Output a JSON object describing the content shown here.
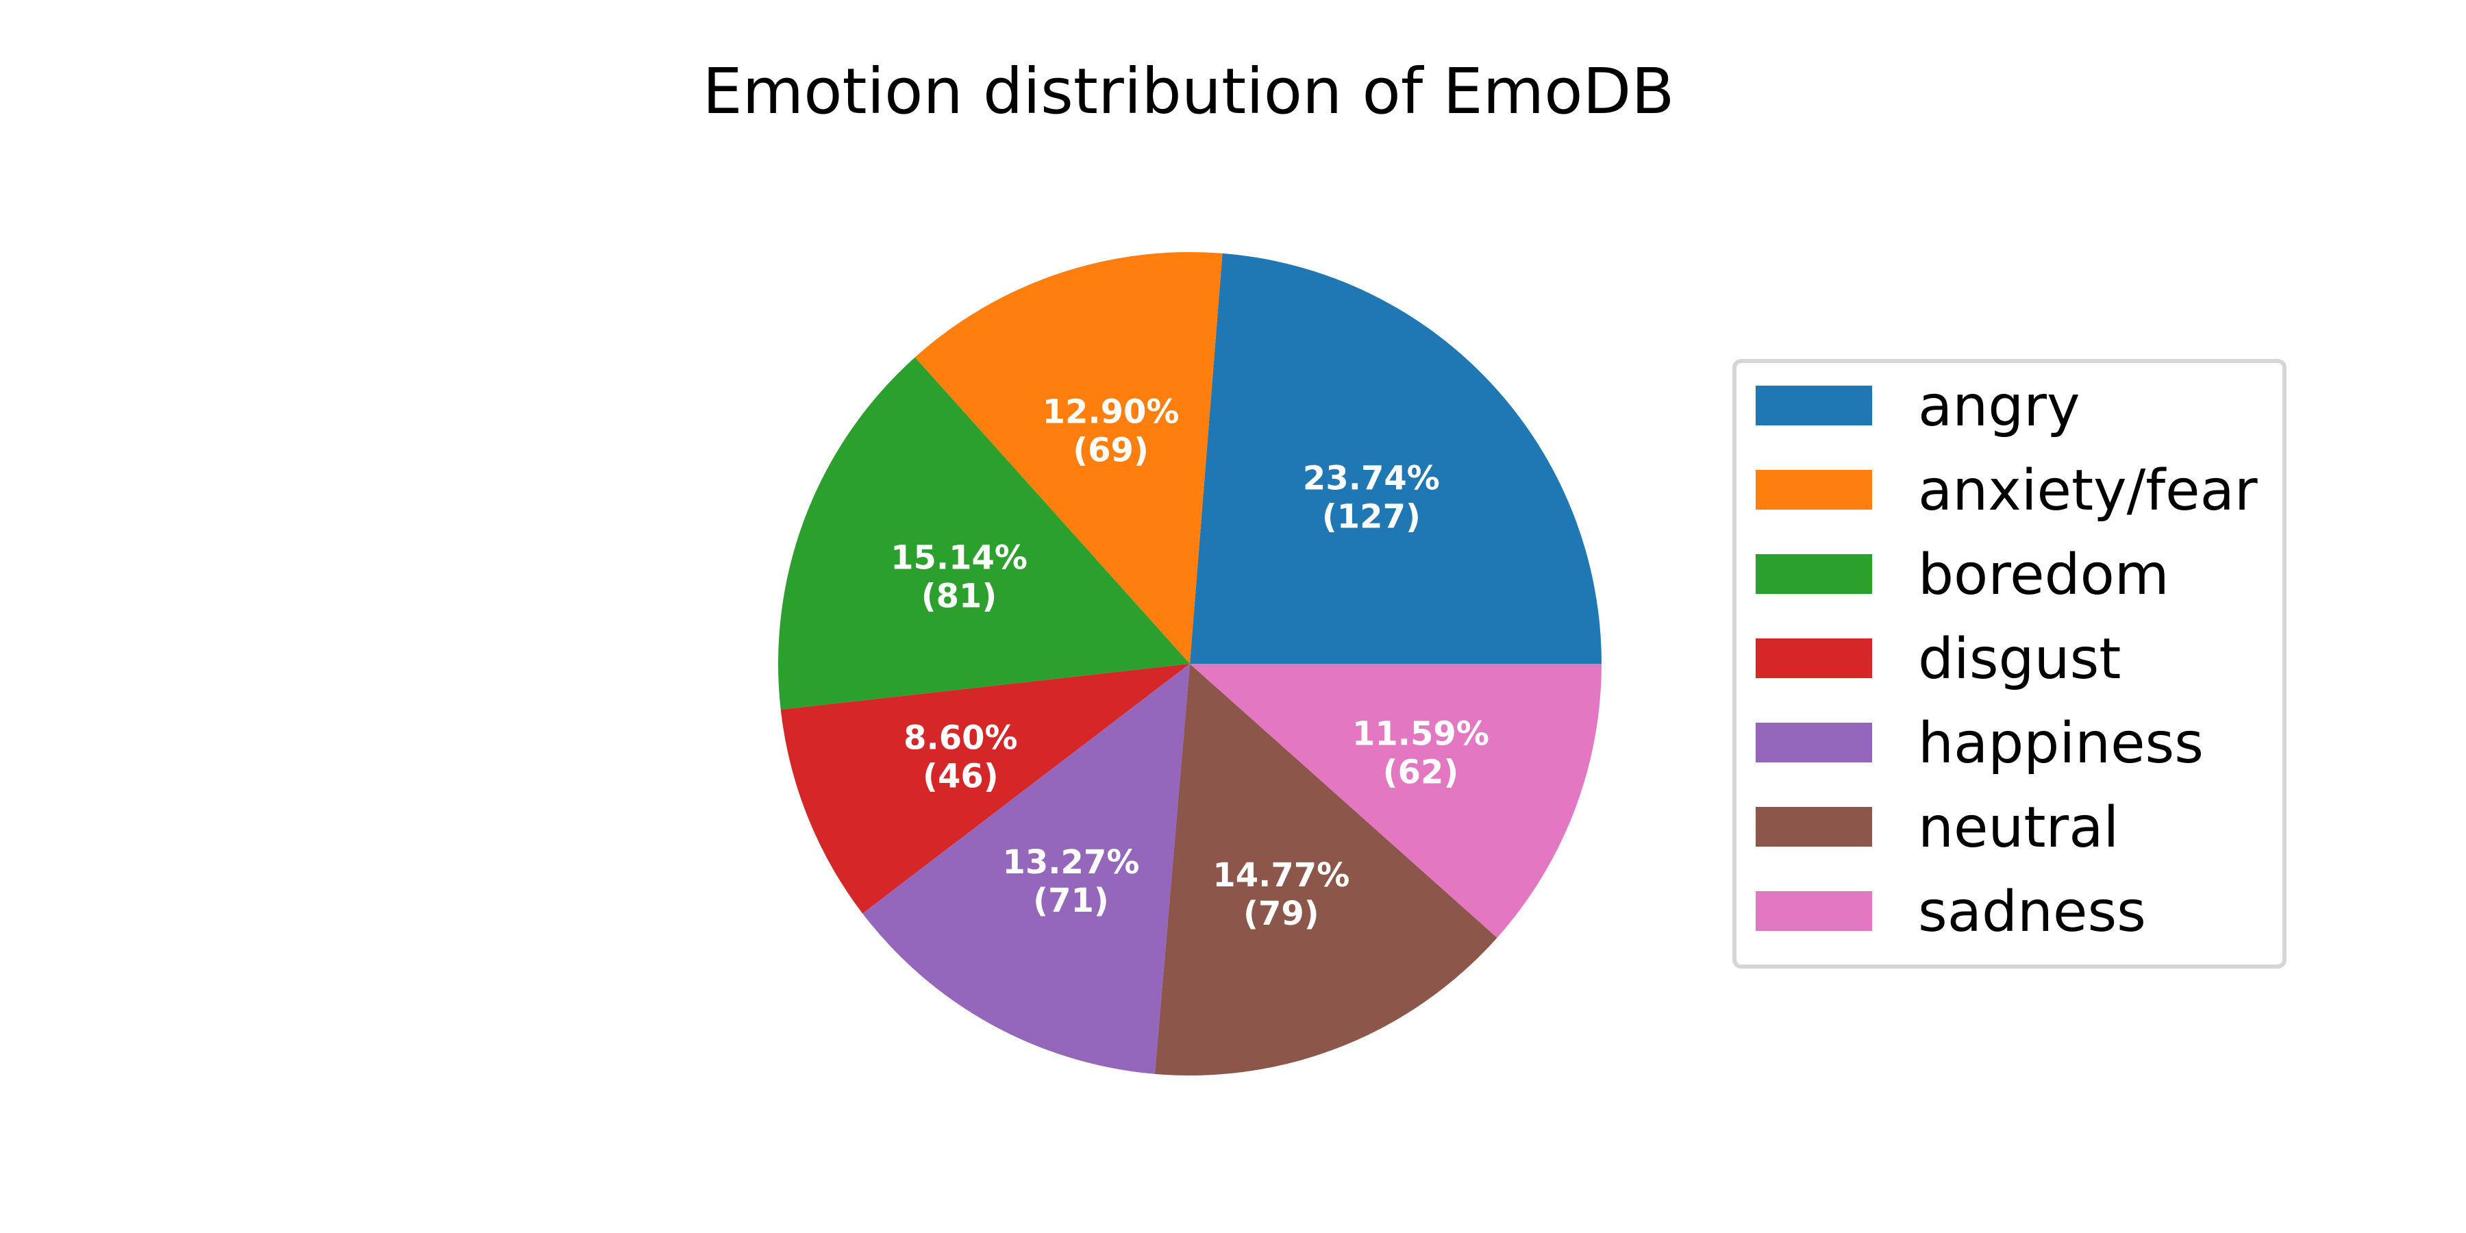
{
  "chart_data": {
    "type": "pie",
    "title": "Emotion distribution of EmoDB",
    "legend_position": "right",
    "start_angle_degrees": 0,
    "direction": "counterclockwise",
    "slices": [
      {
        "label": "angry",
        "value": 127,
        "percent_label": "23.74%",
        "count_label": "(127)",
        "color": "#1f77b4"
      },
      {
        "label": "anxiety/fear",
        "value": 69,
        "percent_label": "12.90%",
        "count_label": "(69)",
        "color": "#ff7f0e"
      },
      {
        "label": "boredom",
        "value": 81,
        "percent_label": "15.14%",
        "count_label": "(81)",
        "color": "#2ca02c"
      },
      {
        "label": "disgust",
        "value": 46,
        "percent_label": "8.60%",
        "count_label": "(46)",
        "color": "#d62728"
      },
      {
        "label": "happiness",
        "value": 71,
        "percent_label": "13.27%",
        "count_label": "(71)",
        "color": "#9467bd"
      },
      {
        "label": "neutral",
        "value": 79,
        "percent_label": "14.77%",
        "count_label": "(79)",
        "color": "#8c564b"
      },
      {
        "label": "sadness",
        "value": 62,
        "percent_label": "11.59%",
        "count_label": "(62)",
        "color": "#e377c2"
      }
    ]
  }
}
